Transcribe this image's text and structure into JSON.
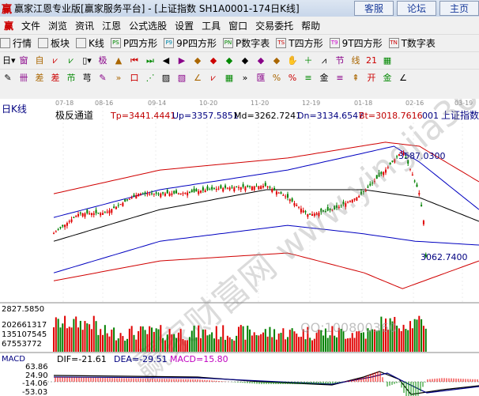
{
  "window": {
    "logo": "赢",
    "title": "赢家江恩专业版[赢家服务平台] - [上证指数  SH1A0001-174日K线]",
    "buttons": [
      "客服",
      "论坛",
      "主页"
    ]
  },
  "menu": [
    "文件",
    "浏览",
    "资讯",
    "江恩",
    "公式选股",
    "设置",
    "工具",
    "窗口",
    "交易委托",
    "帮助"
  ],
  "toolbar1": [
    {
      "icon": "table-icon",
      "label": "行情"
    },
    {
      "icon": "blocks-icon",
      "label": "板块"
    },
    {
      "icon": "kline-icon",
      "label": "K线"
    },
    {
      "icon": "PS",
      "label": "P四方形"
    },
    {
      "icon": "P9",
      "label": "9P四方形"
    },
    {
      "icon": "PN",
      "label": "P数字表"
    },
    {
      "icon": "TS",
      "label": "T四方形"
    },
    {
      "icon": "T9",
      "label": "9T四方形"
    },
    {
      "icon": "TN",
      "label": "T数字表"
    }
  ],
  "toolbar2": [
    "日▾",
    "窗",
    "自",
    "⩗",
    "⩗",
    "▯▾",
    "极",
    "▲",
    "⏮",
    "⏭",
    "◀",
    "▶",
    "◆",
    "◆",
    "◆",
    "◆",
    "◆",
    "◆",
    "✋",
    "＋",
    "⩘",
    "节",
    "线",
    "21",
    "▦"
  ],
  "toolbar3": [
    "✎",
    "卌",
    "差",
    "差",
    "芇",
    "芎",
    "✎",
    "»",
    "口",
    "⋰",
    "▨",
    "▧",
    "∠",
    "⩗",
    "▦",
    "»",
    "匯",
    "%",
    "%",
    "≡",
    "金",
    "≡",
    "⇞",
    "开",
    "金",
    "∠"
  ],
  "chart": {
    "period_label": "日K线",
    "indicator_name": "极反通道",
    "tp": "Tp=3441.4441",
    "up": "Up=3357.5851",
    "md": "Md=3262.7241",
    "dn": "Dn=3134.6547",
    "bt": "Bt=3018.7616",
    "code": "001",
    "name": "上证指数",
    "date_ticks": [
      "07-18",
      "08-16",
      "09-14",
      "10-20",
      "11-20",
      "12-19",
      "01-18",
      "02-16",
      "03-19"
    ],
    "annot_high": "3587.0300",
    "annot_low": "3062.7400",
    "watermark": "赢家财富网 www.yingjia360.com",
    "qq": "QQ:100800360"
  },
  "volume": {
    "labels": [
      "2827.5850",
      "202661317",
      "135107545",
      "67553772"
    ]
  },
  "macd": {
    "title": "MACD",
    "dif": "DIF=-21.61",
    "dea": "DEA=-29.51",
    "macd": "MACD=15.80",
    "labels": [
      "63.86",
      "24.90",
      "-14.06",
      "-53.03"
    ]
  },
  "chart_data": {
    "type": "candlestick",
    "price_path": {
      "x": [
        0,
        6,
        12,
        20,
        30,
        40,
        50,
        55,
        60,
        66,
        72,
        78,
        82,
        84,
        86,
        87,
        87.5
      ],
      "y": [
        3185,
        3288,
        3290,
        3390,
        3392,
        3420,
        3431,
        3370,
        3280,
        3310,
        3380,
        3513,
        3615,
        3510,
        3390,
        3247,
        3062
      ]
    },
    "bands": [
      {
        "color": "#d00000",
        "x": [
          0,
          25,
          55,
          78,
          86,
          100
        ],
        "y": [
          3390,
          3513,
          3575,
          3657,
          3636,
          3452
        ]
      },
      {
        "color": "#0000c0",
        "x": [
          0,
          25,
          55,
          80,
          86,
          100
        ],
        "y": [
          3267,
          3411,
          3513,
          3636,
          3554,
          3308
        ]
      },
      {
        "color": "#000000",
        "x": [
          0,
          25,
          50,
          73,
          86,
          100
        ],
        "y": [
          3144,
          3308,
          3411,
          3411,
          3370,
          3247
        ]
      },
      {
        "color": "#0000c0",
        "x": [
          0,
          25,
          55,
          72,
          85,
          100
        ],
        "y": [
          2980,
          3144,
          3226,
          3185,
          3144,
          3124
        ]
      },
      {
        "color": "#d00000",
        "x": [
          0,
          25,
          55,
          73,
          82,
          100
        ],
        "y": [
          2939,
          3042,
          3083,
          2980,
          2898,
          3042
        ]
      }
    ],
    "colors": {
      "up": "#e00000",
      "down": "#008000"
    }
  }
}
